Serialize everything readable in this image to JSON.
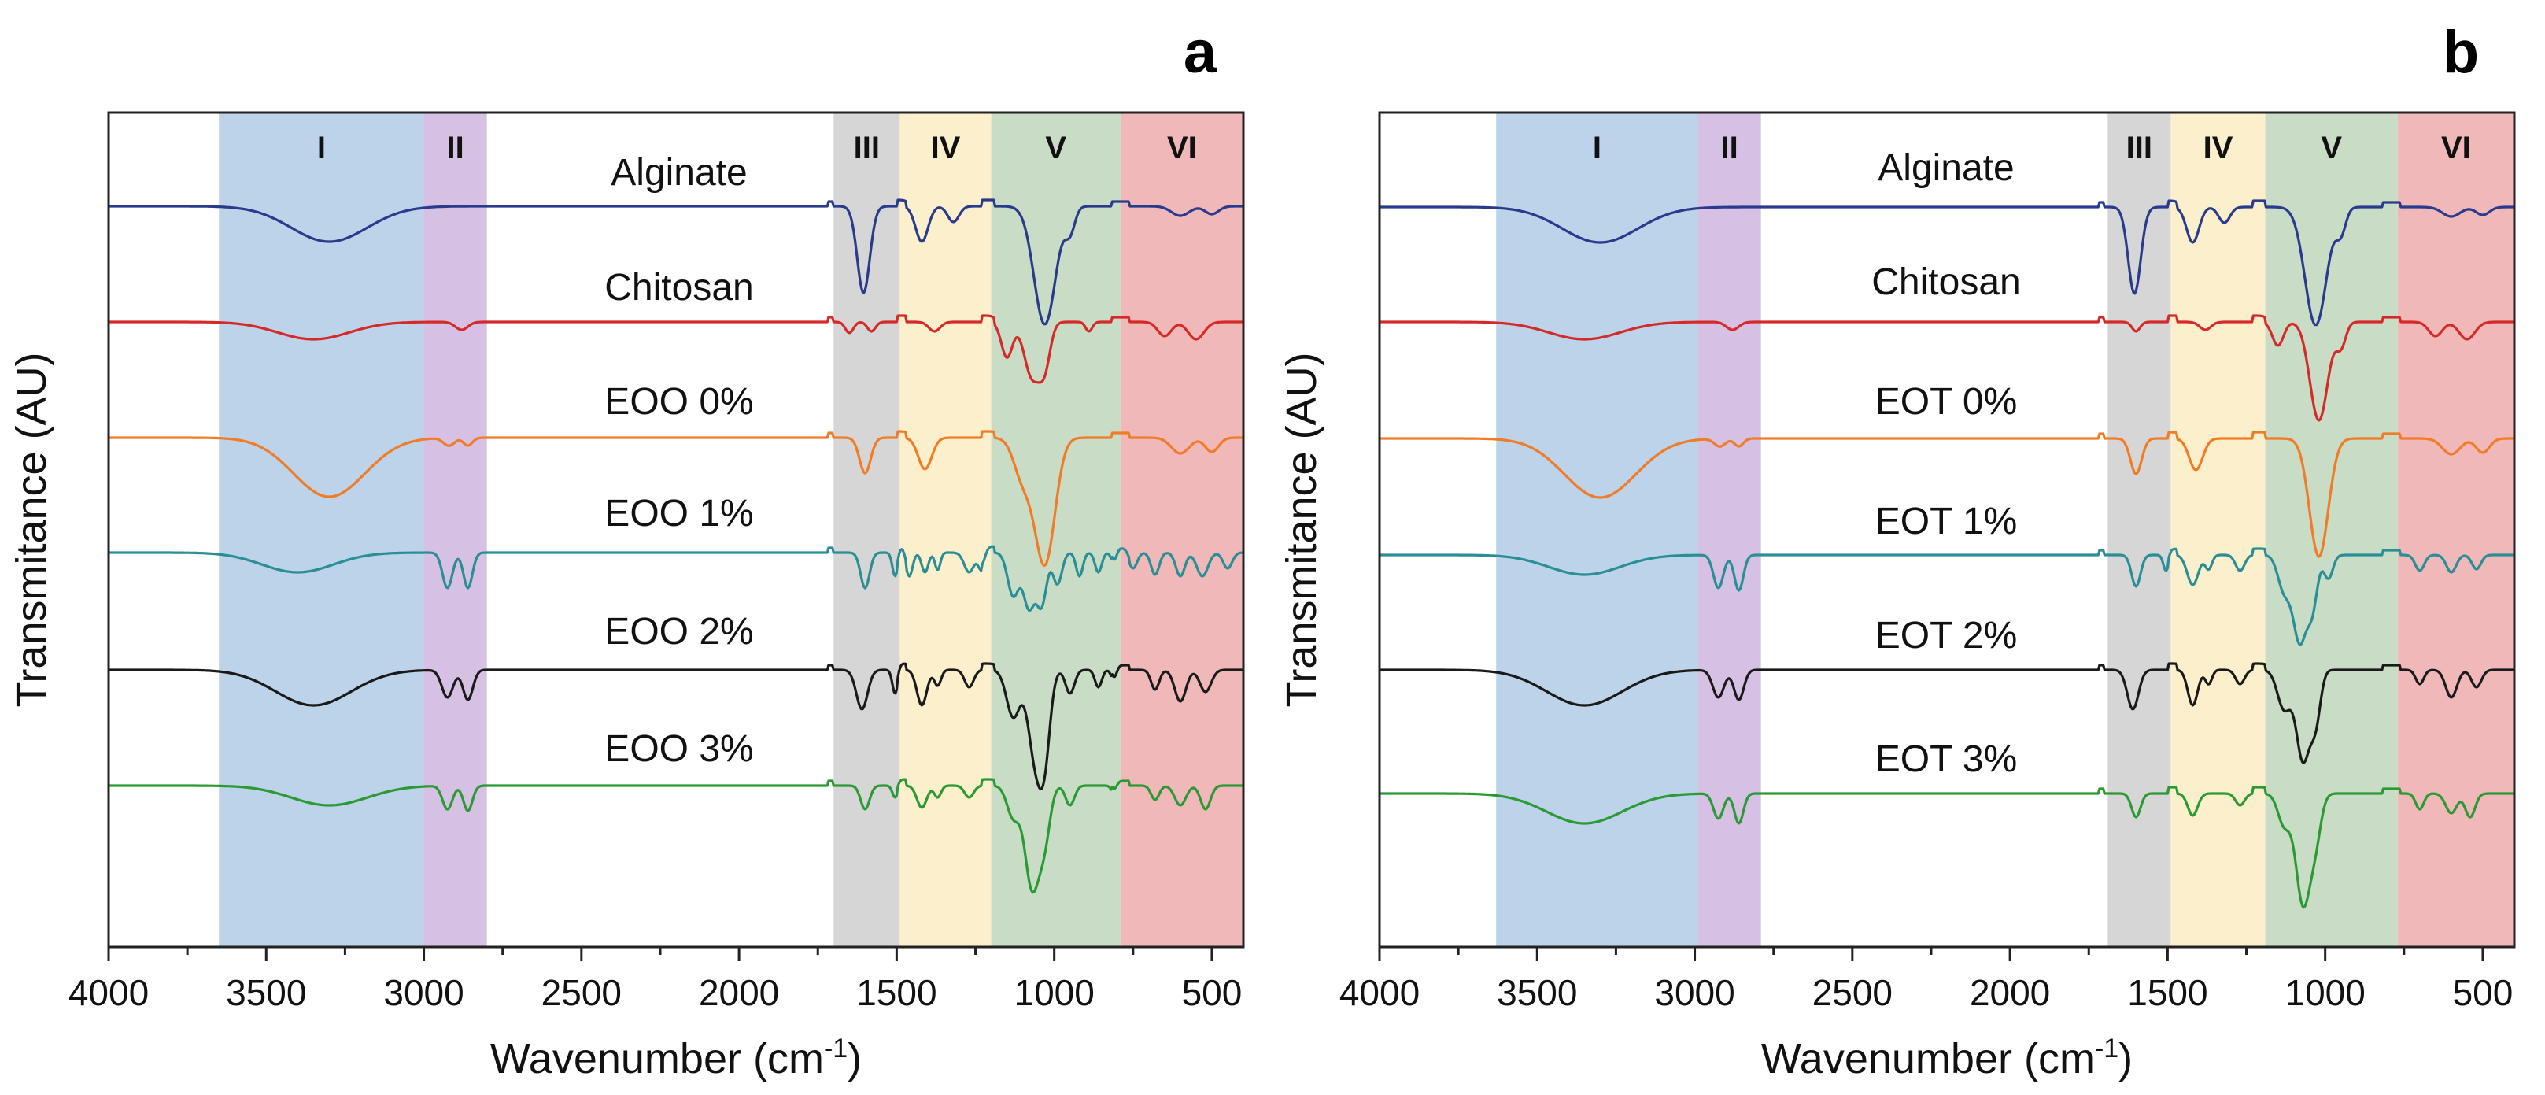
{
  "chart_data": [
    {
      "type": "line",
      "panel": "a",
      "xlabel": "Wavenumber (cm-1)",
      "ylabel": "Transmitance (AU)",
      "xlim": [
        4000,
        400
      ],
      "xticks": [
        4000,
        3500,
        3000,
        2500,
        2000,
        1500,
        1000,
        500
      ],
      "yticks": "none",
      "regions": [
        {
          "label": "I",
          "from": 3650,
          "to": 3000,
          "color": "#bcd3ea"
        },
        {
          "label": "II",
          "from": 3000,
          "to": 2800,
          "color": "#d6c0e4"
        },
        {
          "label": "III",
          "from": 1700,
          "to": 1490,
          "color": "#d6d6d6"
        },
        {
          "label": "IV",
          "from": 1490,
          "to": 1200,
          "color": "#fcf0cc"
        },
        {
          "label": "V",
          "from": 1200,
          "to": 790,
          "color": "#c9dcc5"
        },
        {
          "label": "VI",
          "from": 790,
          "to": 400,
          "color": "#f0b8b8"
        }
      ],
      "series": [
        {
          "name": "Alginate",
          "color": "#2a3a8c"
        },
        {
          "name": "Chitosan",
          "color": "#d42a2a"
        },
        {
          "name": "EOO 0%",
          "color": "#f07c28"
        },
        {
          "name": "EOO 1%",
          "color": "#2a8e96"
        },
        {
          "name": "EOO 2%",
          "color": "#1a1a1a"
        },
        {
          "name": "EOO 3%",
          "color": "#2c9a34"
        }
      ]
    },
    {
      "type": "line",
      "panel": "b",
      "xlabel": "Wavenumber (cm-1)",
      "ylabel": "Transmitance (AU)",
      "xlim": [
        4000,
        400
      ],
      "xticks": [
        4000,
        3500,
        3000,
        2500,
        2000,
        1500,
        1000,
        500
      ],
      "yticks": "none",
      "regions": [
        {
          "label": "I",
          "from": 3630,
          "to": 2990,
          "color": "#bcd3ea"
        },
        {
          "label": "II",
          "from": 2990,
          "to": 2790,
          "color": "#d6c0e4"
        },
        {
          "label": "III",
          "from": 1690,
          "to": 1490,
          "color": "#d6d6d6"
        },
        {
          "label": "IV",
          "from": 1490,
          "to": 1190,
          "color": "#fcf0cc"
        },
        {
          "label": "V",
          "from": 1190,
          "to": 770,
          "color": "#c9dcc5"
        },
        {
          "label": "VI",
          "from": 770,
          "to": 400,
          "color": "#f0b8b8"
        }
      ],
      "series": [
        {
          "name": "Alginate",
          "color": "#2a3a8c"
        },
        {
          "name": "Chitosan",
          "color": "#d42a2a"
        },
        {
          "name": "EOT 0%",
          "color": "#f07c28"
        },
        {
          "name": "EOT 1%",
          "color": "#2a8e96"
        },
        {
          "name": "EOT 2%",
          "color": "#1a1a1a"
        },
        {
          "name": "EOT 3%",
          "color": "#2c9a34"
        }
      ]
    }
  ],
  "panel_letters": [
    "a",
    "b"
  ],
  "axis_titles": {
    "xlabel_main": "Wavenumber (cm",
    "xlabel_sup": "-1",
    "xlabel_end": ")",
    "ylabel": "Transmitance (AU)"
  }
}
